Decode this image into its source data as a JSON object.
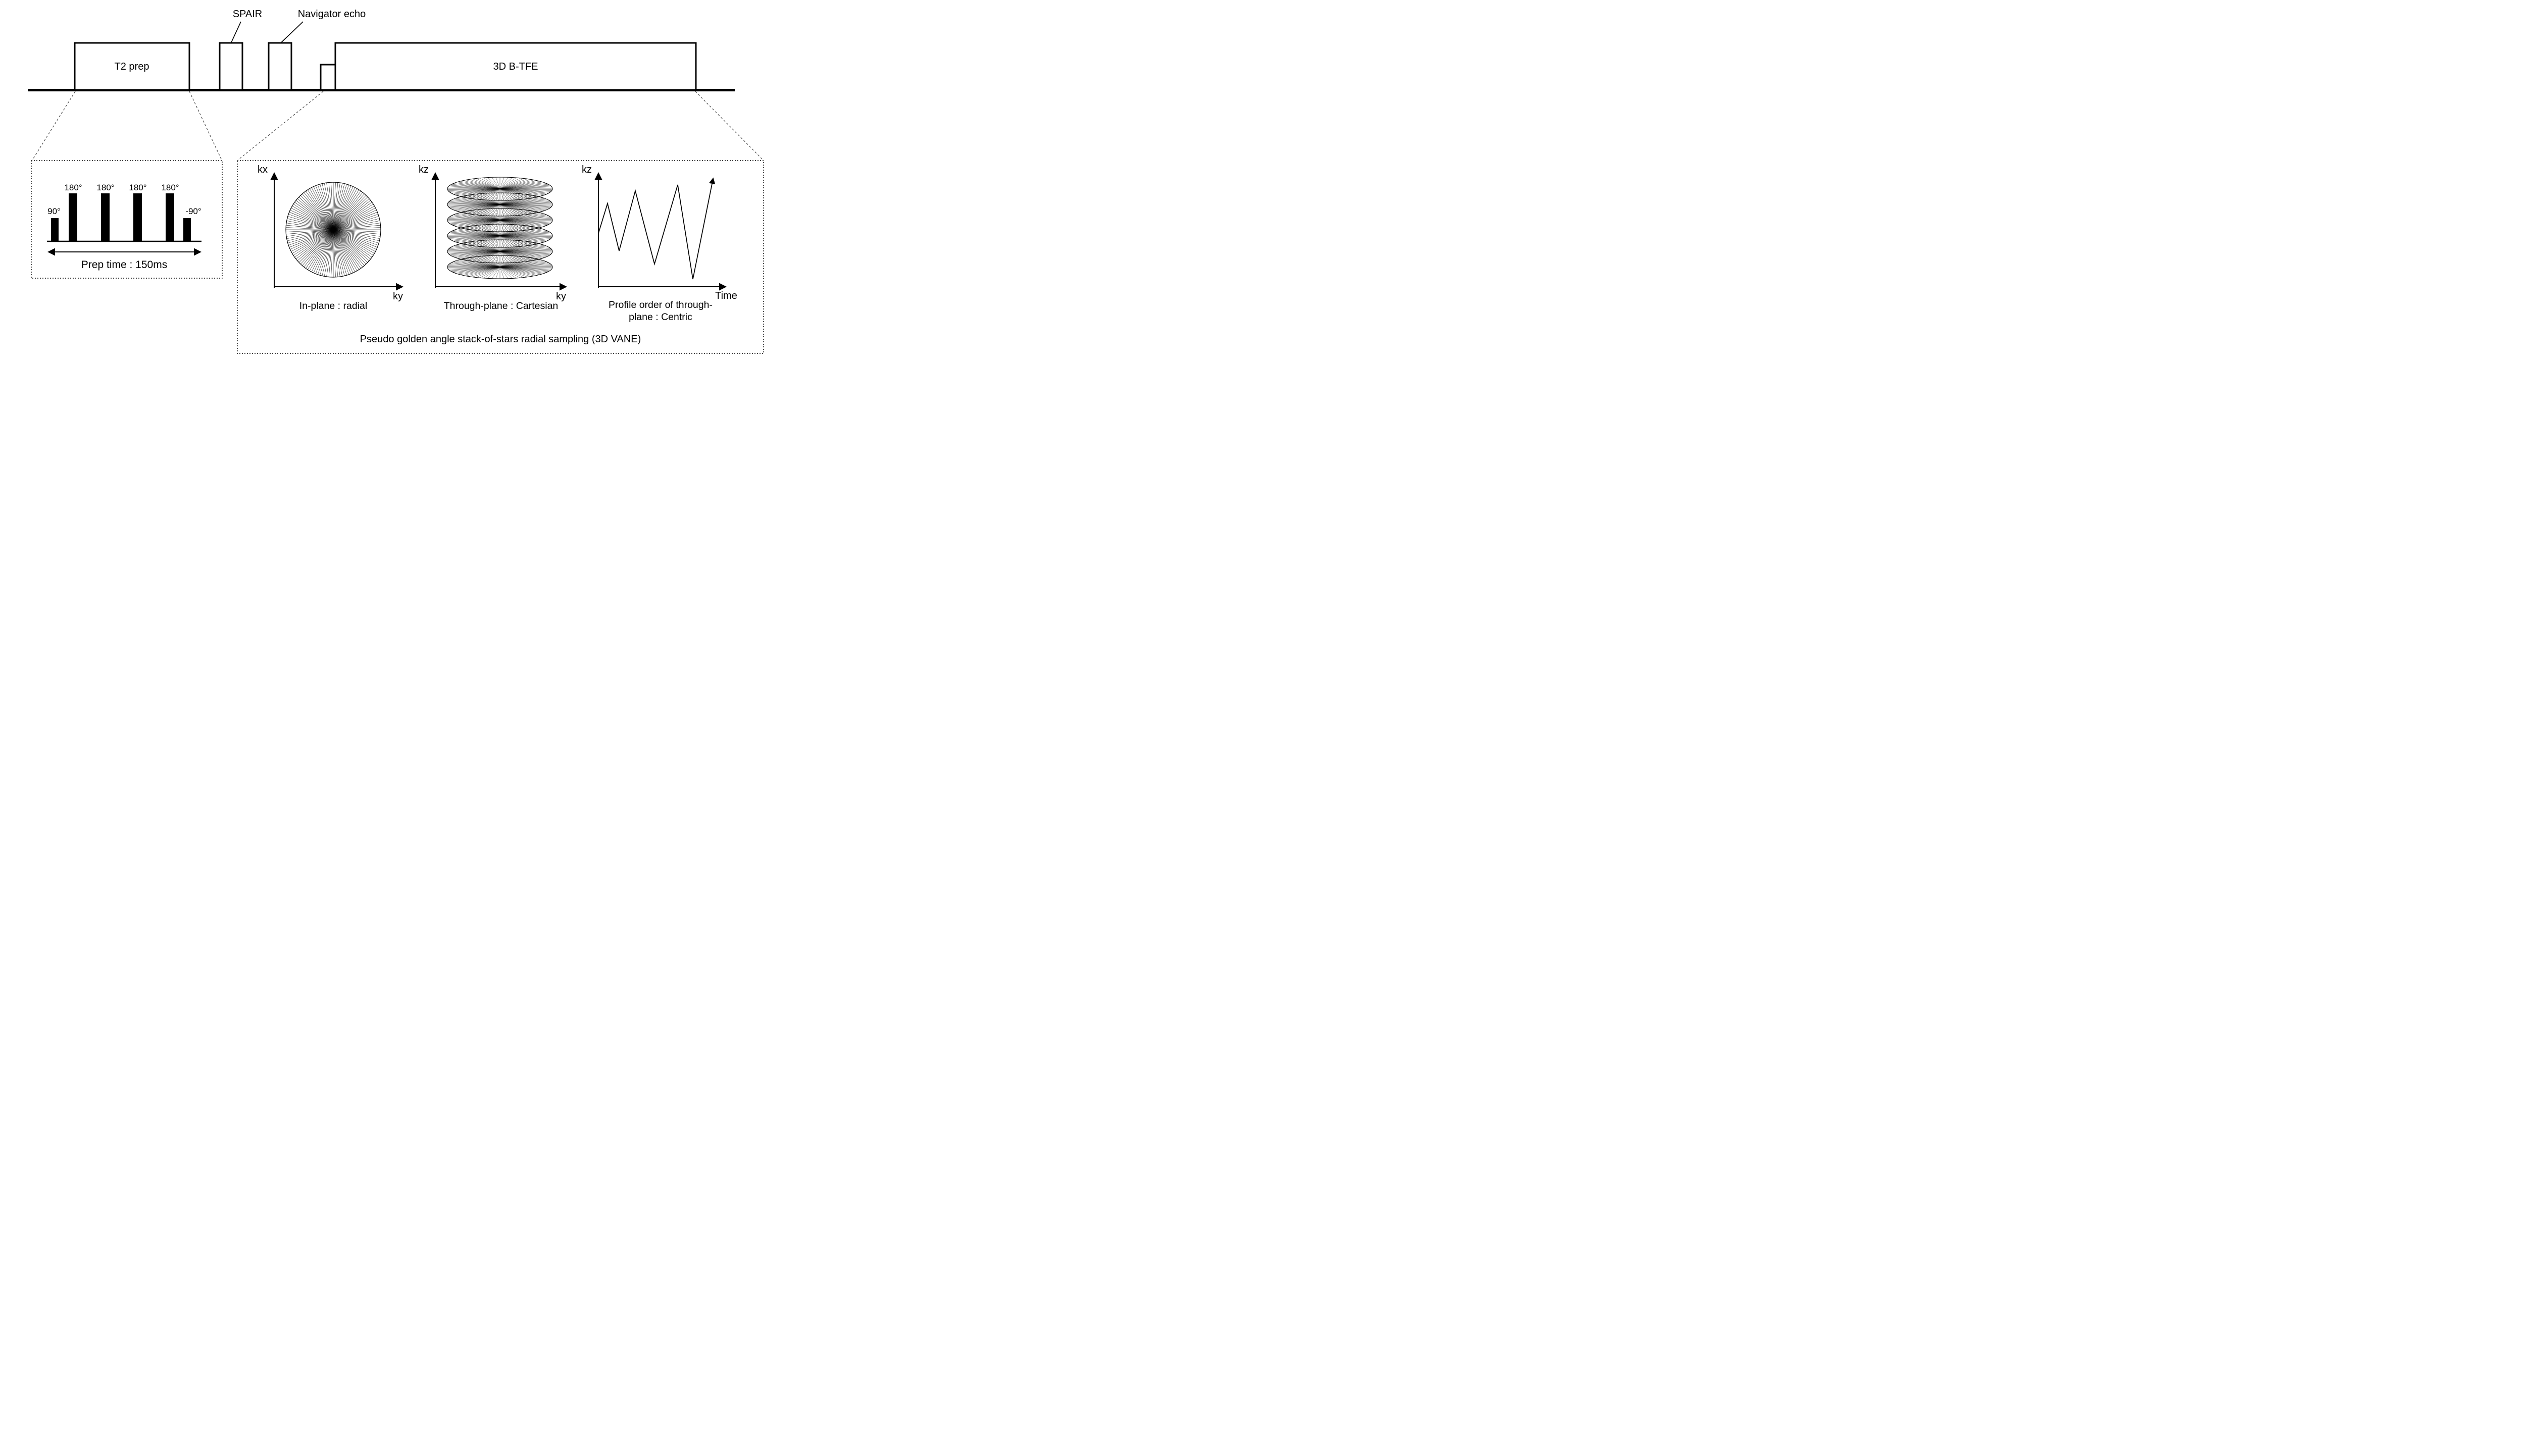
{
  "page": {
    "background": "#ffffff",
    "ink": "#000000"
  },
  "sequence": {
    "t2_prep_label": "T2 prep",
    "spair_label": "SPAIR",
    "navigator_label": "Navigator echo",
    "btfe_label": "3D B-TFE"
  },
  "t2_prep_detail": {
    "pulse_labels": [
      "90°",
      "180°",
      "180°",
      "180°",
      "-90°"
    ],
    "pulse_label_first": "90°",
    "pulse_label_last": "-90°",
    "prep_time_label": "Prep time : 150ms"
  },
  "vane_detail": {
    "in_plane": {
      "y_axis_label": "kx",
      "x_axis_label": "ky",
      "caption": "In-plane : radial"
    },
    "through_plane": {
      "y_axis_label": "kz",
      "x_axis_label": "ky",
      "caption": "Through-plane : Cartesian"
    },
    "profile_order": {
      "y_axis_label": "kz",
      "x_axis_label": "Time",
      "caption_line1": "Profile order of through-",
      "caption_line2": "plane : Centric"
    },
    "caption": "Pseudo golden angle stack-of-stars radial sampling (3D VANE)"
  },
  "figure": {
    "in_plane_spokes": 66,
    "through_plane_ellipses": 6,
    "through_plane_spokes_per_ellipse": 40
  }
}
